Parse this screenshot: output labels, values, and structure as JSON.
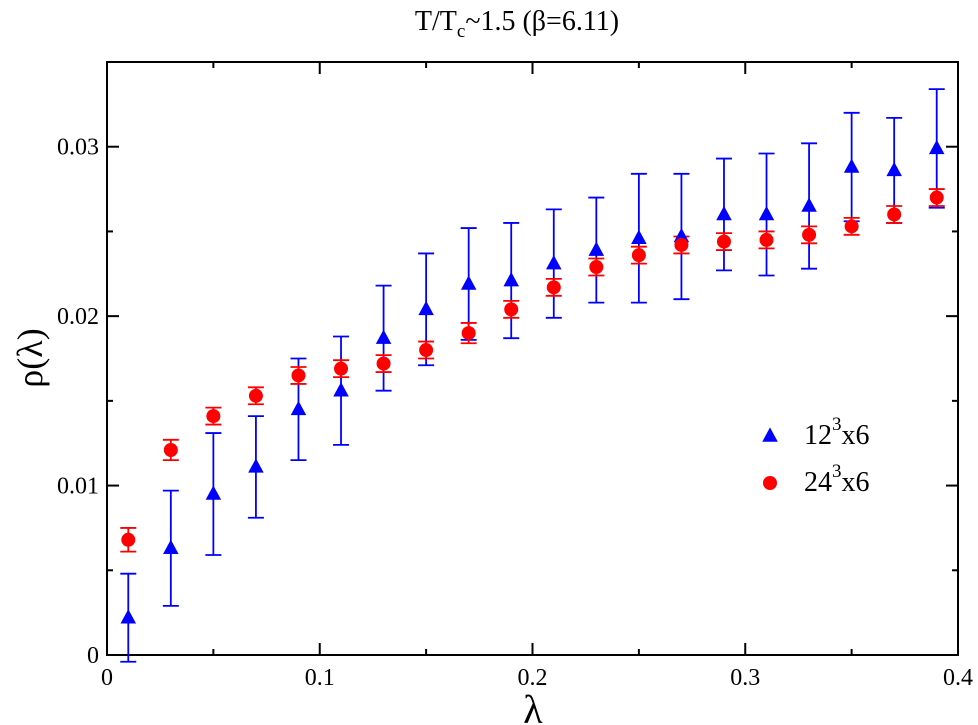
{
  "chart_data": {
    "type": "scatter",
    "title": {
      "prefix": "T/T",
      "subscript": "c",
      "suffix": "~1.5 (β=6.11)"
    },
    "xlabel": "λ",
    "ylabel": "ρ(λ)",
    "xlim": [
      0,
      0.4
    ],
    "ylim": [
      0,
      0.035
    ],
    "xticks": [
      0,
      0.1,
      0.2,
      0.3,
      0.4
    ],
    "xtick_labels": [
      "0",
      "0.1",
      "0.2",
      "0.3",
      "0.4"
    ],
    "yticks": [
      0,
      0.01,
      0.02,
      0.03
    ],
    "ytick_labels": [
      "0",
      "0.01",
      "0.02",
      "0.03"
    ],
    "grid": false,
    "legend_position": "right",
    "series": [
      {
        "legend": {
          "base": "12",
          "sup": "3",
          "rest": "x6"
        },
        "marker": "triangle",
        "color": "#0000ff",
        "x": [
          0.01,
          0.03,
          0.05,
          0.07,
          0.09,
          0.11,
          0.13,
          0.15,
          0.17,
          0.19,
          0.21,
          0.23,
          0.25,
          0.27,
          0.29,
          0.31,
          0.33,
          0.35,
          0.37,
          0.39
        ],
        "y": [
          0.0022,
          0.0063,
          0.0095,
          0.0111,
          0.0145,
          0.0156,
          0.0187,
          0.0204,
          0.0219,
          0.0221,
          0.0231,
          0.0239,
          0.0246,
          0.0247,
          0.026,
          0.026,
          0.0265,
          0.0288,
          0.0286,
          0.0299
        ],
        "yerr": [
          0.0026,
          0.0034,
          0.0036,
          0.003,
          0.003,
          0.0032,
          0.0031,
          0.0033,
          0.0033,
          0.0034,
          0.0032,
          0.0031,
          0.0038,
          0.0037,
          0.0033,
          0.0036,
          0.0037,
          0.0032,
          0.0031,
          0.0035
        ]
      },
      {
        "legend": {
          "base": "24",
          "sup": "3",
          "rest": "x6"
        },
        "marker": "circle",
        "color": "#ff0000",
        "x": [
          0.01,
          0.03,
          0.05,
          0.07,
          0.09,
          0.11,
          0.13,
          0.15,
          0.17,
          0.19,
          0.21,
          0.23,
          0.25,
          0.27,
          0.29,
          0.31,
          0.33,
          0.35,
          0.37,
          0.39
        ],
        "y": [
          0.0068,
          0.0121,
          0.0141,
          0.0153,
          0.0165,
          0.0169,
          0.0172,
          0.018,
          0.019,
          0.0204,
          0.0217,
          0.0229,
          0.0236,
          0.0242,
          0.0244,
          0.0245,
          0.0248,
          0.0253,
          0.026,
          0.027
        ],
        "yerr": [
          0.0007,
          0.0006,
          0.0005,
          0.0005,
          0.0005,
          0.0005,
          0.0005,
          0.0005,
          0.0006,
          0.0005,
          0.0005,
          0.0005,
          0.0005,
          0.0005,
          0.0005,
          0.0005,
          0.0005,
          0.0005,
          0.0005,
          0.0005
        ]
      }
    ]
  }
}
